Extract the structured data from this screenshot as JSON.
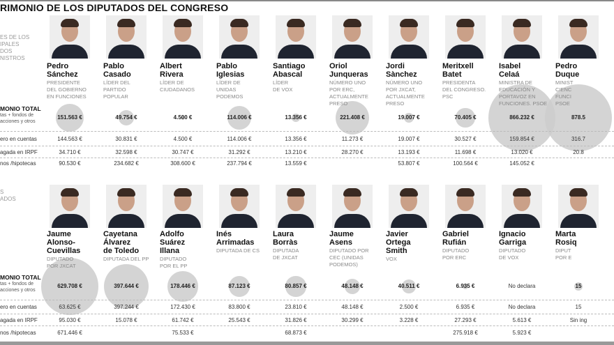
{
  "title": "RIMONIO DE LOS DIPUTADOS DEL CONGRESO",
  "colors": {
    "bubble": "#cccccc"
  },
  "section1": {
    "label": [
      "ES DE LOS",
      "IPALES",
      "DOS",
      "NISTROS"
    ]
  },
  "section2": {
    "label": [
      "S",
      "ADOS"
    ]
  },
  "row_labels": {
    "total": "MONIO TOTAL",
    "total_sub1": "tas + fondos de",
    "total_sub2": "acciones y otros",
    "cuentas": "ero en cuentas",
    "irpf": "agada en IRPF",
    "hipotecas": "nos /hipotecas"
  },
  "top": [
    {
      "name": [
        "Pedro",
        "Sánchez"
      ],
      "role": [
        "PRESIDENTE",
        "DEL GOBIERNO",
        "EN FUNCIONES"
      ],
      "total": "151.563 €",
      "total_value": 151563,
      "cuentas": "144.563 €",
      "irpf": "34.710 €",
      "hipotecas": "90.530 €"
    },
    {
      "name": [
        "Pablo",
        "Casado"
      ],
      "role": [
        "LÍDER DEL",
        "PARTIDO",
        "POPULAR"
      ],
      "total": "49.754 €",
      "total_value": 49754,
      "cuentas": "30.831 €",
      "irpf": "32.598 €",
      "hipotecas": "234.682 €"
    },
    {
      "name": [
        "Albert",
        "Rivera"
      ],
      "role": [
        "LÍDER DE",
        "CIUDADANOS"
      ],
      "total": "4.500 €",
      "total_value": 4500,
      "cuentas": "4.500 €",
      "irpf": "30.747 €",
      "hipotecas": "308.600 €"
    },
    {
      "name": [
        "Pablo",
        "Iglesias"
      ],
      "role": [
        "LÍDER DE",
        "UNIDAS",
        "PODEMOS"
      ],
      "total": "114.006 €",
      "total_value": 114006,
      "cuentas": "114.006 €",
      "irpf": "31.292 €",
      "hipotecas": "237.794 €"
    },
    {
      "name": [
        "Santiago",
        "Abascal"
      ],
      "role": [
        "LÍDER",
        "DE VOX"
      ],
      "total": "13.356 €",
      "total_value": 13356,
      "cuentas": "13.356 €",
      "irpf": "13.210 €",
      "hipotecas": "13.559 €"
    },
    {
      "name": [
        "Oriol",
        "Junqueras"
      ],
      "role": [
        "NÚMERO UNO",
        "POR ERC,",
        "ACTUALMENTE",
        "PRESO"
      ],
      "total": "221.408 €",
      "total_value": 221408,
      "cuentas": "11.273 €",
      "irpf": "28.270 €",
      "hipotecas": ""
    },
    {
      "name": [
        "Jordi",
        "Sànchez"
      ],
      "role": [
        "NÚMERO UNO",
        "POR JXCAT,",
        "ACTUALMENTE",
        "PRESO"
      ],
      "total": "19.007 €",
      "total_value": 19007,
      "cuentas": "19.007 €",
      "irpf": "13.193 €",
      "hipotecas": "53.807 €"
    },
    {
      "name": [
        "Meritxell",
        "Batet"
      ],
      "role": [
        "PRESIDENTA",
        "DEL CONGRESO.",
        "PSC"
      ],
      "total": "70.405 €",
      "total_value": 70405,
      "cuentas": "30.527 €",
      "irpf": "11.698 €",
      "hipotecas": "100.564 €"
    },
    {
      "name": [
        "Isabel",
        "Celaá"
      ],
      "role": [
        "MINISTRA DE",
        "EDUCACIÓN Y",
        "PORTAVOZ EN",
        "FUNCIONES. PSOE"
      ],
      "total": "866.232 €",
      "total_value": 866232,
      "cuentas": "159.854 €",
      "irpf": "13.020 €",
      "hipotecas": "145.052 €"
    },
    {
      "name": [
        "Pedro",
        "Duque"
      ],
      "role": [
        "MINIST",
        "CIENC",
        "FUNCI",
        "PSOE"
      ],
      "total": "878.5",
      "total_value": 878500,
      "cuentas": "316.7",
      "irpf": "20.8",
      "hipotecas": ""
    }
  ],
  "bottom": [
    {
      "name": [
        "Jaume",
        "Alonso-",
        "Cuevillas"
      ],
      "role": [
        "DIPUTADO",
        "POR JXCAT"
      ],
      "total": "629.708 €",
      "total_value": 629708,
      "cuentas": "63.625 €",
      "irpf": "95.030 €",
      "hipotecas": "671.446 €"
    },
    {
      "name": [
        "Cayetana",
        "Álvarez",
        "de Toledo"
      ],
      "role": [
        "DIPUTADA DEL PP"
      ],
      "total": "397.644 €",
      "total_value": 397644,
      "cuentas": "397.244 €",
      "irpf": "15.078 €",
      "hipotecas": ""
    },
    {
      "name": [
        "Adolfo",
        "Suárez",
        "Illana"
      ],
      "role": [
        "DIPUTADO",
        "POR EL PP"
      ],
      "total": "178.446 €",
      "total_value": 178446,
      "cuentas": "172.430 €",
      "irpf": "61.742 €",
      "hipotecas": "75.533 €"
    },
    {
      "name": [
        "Inés",
        "Arrimadas"
      ],
      "role": [
        "DIPUTADA DE CS"
      ],
      "total": "87.123 €",
      "total_value": 87123,
      "cuentas": "83.800 €",
      "irpf": "25.543 €",
      "hipotecas": ""
    },
    {
      "name": [
        "Laura",
        "Borràs"
      ],
      "role": [
        "DIPUTADA",
        "DE JXCAT"
      ],
      "total": "80.857 €",
      "total_value": 80857,
      "cuentas": "23.810 €",
      "irpf": "31.826 €",
      "hipotecas": "68.873 €"
    },
    {
      "name": [
        "Jaume",
        "Asens"
      ],
      "role": [
        "DIPUTADO POR",
        "CEC (UNIDAS",
        "PODEMOS)"
      ],
      "total": "48.148 €",
      "total_value": 48148,
      "cuentas": "48.148 €",
      "irpf": "30.299 €",
      "hipotecas": ""
    },
    {
      "name": [
        "Javier",
        "Ortega",
        "Smith"
      ],
      "role": [
        "VOX"
      ],
      "total": "40.511 €",
      "total_value": 40511,
      "cuentas": "2.500 €",
      "irpf": "3.228 €",
      "hipotecas": ""
    },
    {
      "name": [
        "Gabriel",
        "Rufián"
      ],
      "role": [
        "DIPUTADO",
        "POR ERC"
      ],
      "total": "6.935 €",
      "total_value": 6935,
      "cuentas": "6.935 €",
      "irpf": "27.293 €",
      "hipotecas": "275.918 €"
    },
    {
      "name": [
        "Ignacio",
        "Garriga"
      ],
      "role": [
        "DIPUTADO",
        "DE VOX"
      ],
      "total": "No declara",
      "total_value": 0,
      "cuentas": "No declara",
      "irpf": "5.613 €",
      "hipotecas": "5.923 €"
    },
    {
      "name": [
        "Marta",
        "Rosiq"
      ],
      "role": [
        "DIPUT",
        "POR E"
      ],
      "total": "15",
      "total_value": 15000,
      "cuentas": "15",
      "irpf": "Sin ing",
      "hipotecas": ""
    }
  ]
}
